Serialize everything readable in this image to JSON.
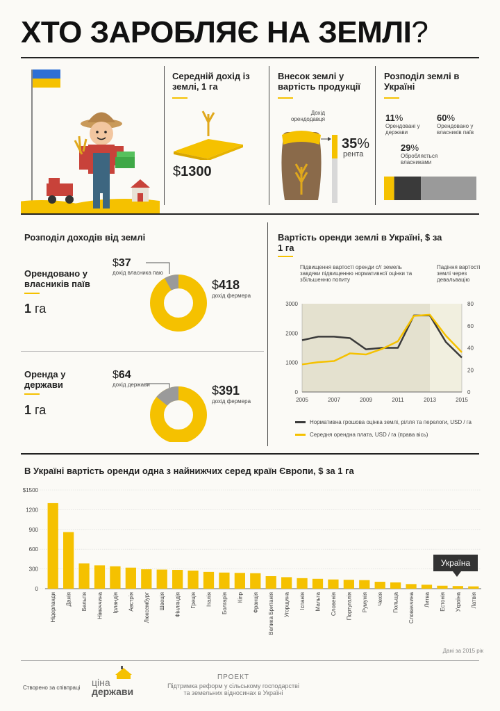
{
  "header": {
    "title": "ХТО ЗАРОБЛЯЄ НА ЗЕМЛІ",
    "title_mark": "?"
  },
  "avg_income": {
    "title": "Середній дохід із землі, 1 га",
    "currency": "$",
    "value": "1300"
  },
  "land_share": {
    "title": "Внесок землі у вартість продукції",
    "label_top": "Дохід орендодавця",
    "value": "35",
    "unit": "%",
    "label": "рента"
  },
  "land_dist": {
    "title": "Розподіл землі в Україні",
    "items": [
      {
        "value": "11",
        "unit": "%",
        "label": "Орендовані у держави",
        "color": "#f5c100",
        "share": 11
      },
      {
        "value": "29",
        "unit": "%",
        "label": "Обробляється власниками",
        "color": "#3a3a3a",
        "share": 29
      },
      {
        "value": "60",
        "unit": "%",
        "label": "Орендовано у власників паїв",
        "color": "#9a9a9a",
        "share": 60
      }
    ]
  },
  "income_dist": {
    "title": "Розподіл доходів від землі",
    "blocks": [
      {
        "label": "Орендовано у власників паїв",
        "area_value": "1",
        "area_unit": "га",
        "owner_value": "37",
        "owner_label": "дохід власника паю",
        "farmer_value": "418",
        "farmer_label": "дохід фермера",
        "currency": "$"
      },
      {
        "label": "Оренда у держави",
        "area_value": "1",
        "area_unit": "га",
        "owner_value": "64",
        "owner_label": "дохід держави",
        "farmer_value": "391",
        "farmer_label": "дохід фермера",
        "currency": "$"
      }
    ]
  },
  "rent_ukraine": {
    "title": "Вартість оренди землі в Україні, $ за 1 га",
    "annotation_left": "Підвищення вартості оренди с/г земель завдяки підвищенню нормативної оцінки та збільшенню попиту",
    "annotation_right": "Падіння вартості землі через девальвацію",
    "legend_black": "Нормативна грошова оцінка землі, рілля та перелоги, USD / га",
    "legend_yellow": "Середня орендна плата, USD / га (права вісь)"
  },
  "europe": {
    "title": "В Україні вартість оренди одна з найнижчих серед країн Європи, $ за 1 га",
    "callout": "Україна",
    "source": "Дані за 2015 рік"
  },
  "footer": {
    "created": "Створено за співпраці",
    "logo_top": "ціна",
    "logo_bottom": "держави",
    "project_label": "ПРОЕКТ",
    "project_line1": "Підтримка реформ у сільському господарстві",
    "project_line2": "та земельних відносинах в Україні"
  },
  "chart_data": [
    {
      "type": "line",
      "title": "Вартість оренди землі в Україні, $ за 1 га",
      "x": [
        2005,
        2006,
        2007,
        2008,
        2009,
        2010,
        2011,
        2012,
        2013,
        2014,
        2015
      ],
      "x_ticks": [
        "2005",
        "2007",
        "2009",
        "2011",
        "2013",
        "2015"
      ],
      "ylim_left": [
        0,
        3000
      ],
      "y_ticks_left": [
        "0",
        "1000",
        "2000",
        "3000"
      ],
      "ylim_right": [
        0,
        80
      ],
      "y_ticks_right": [
        "0",
        "20",
        "40",
        "60",
        "80"
      ],
      "series": [
        {
          "name": "Нормативна грошова оцінка землі, рілля та перелоги, USD / га",
          "axis": "left",
          "color": "#3a3a3a",
          "values": [
            1760,
            1880,
            1880,
            1830,
            1450,
            1500,
            1500,
            2600,
            2600,
            1700,
            1170
          ]
        },
        {
          "name": "Середня орендна плата, USD / га (права вісь)",
          "axis": "right",
          "color": "#f5c100",
          "values": [
            25,
            27,
            28,
            35,
            34,
            39,
            46,
            69,
            70,
            51,
            36
          ]
        }
      ],
      "shaded": [
        [
          2005,
          2013
        ]
      ],
      "shaded_right": [
        [
          2013,
          2015
        ]
      ]
    },
    {
      "type": "bar",
      "title": "В Україні вартість оренди одна з найнижчих серед країн Європи, $ за 1 га",
      "categories": [
        "Нідерланди",
        "Данія",
        "Бельгія",
        "Німеччина",
        "Ірландія",
        "Австрія",
        "Люксембург",
        "Швеція",
        "Фінляндія",
        "Греція",
        "Італія",
        "Болгарія",
        "Кіпр",
        "Франція",
        "Велика Британія",
        "Угорщина",
        "Іспанія",
        "Мальта",
        "Словенія",
        "Португалія",
        "Румунія",
        "Чехія",
        "Польща",
        "Словаччина",
        "Литва",
        "Естонія",
        "Україна",
        "Латвія"
      ],
      "values": [
        1300,
        860,
        385,
        355,
        340,
        320,
        295,
        290,
        285,
        275,
        255,
        245,
        240,
        235,
        190,
        175,
        160,
        150,
        140,
        135,
        130,
        105,
        95,
        70,
        60,
        45,
        40,
        35
      ],
      "ylim": [
        0,
        1500
      ],
      "y_ticks": [
        "0",
        "300",
        "600",
        "900",
        "1200",
        "$1500"
      ],
      "color": "#f5c100"
    }
  ]
}
